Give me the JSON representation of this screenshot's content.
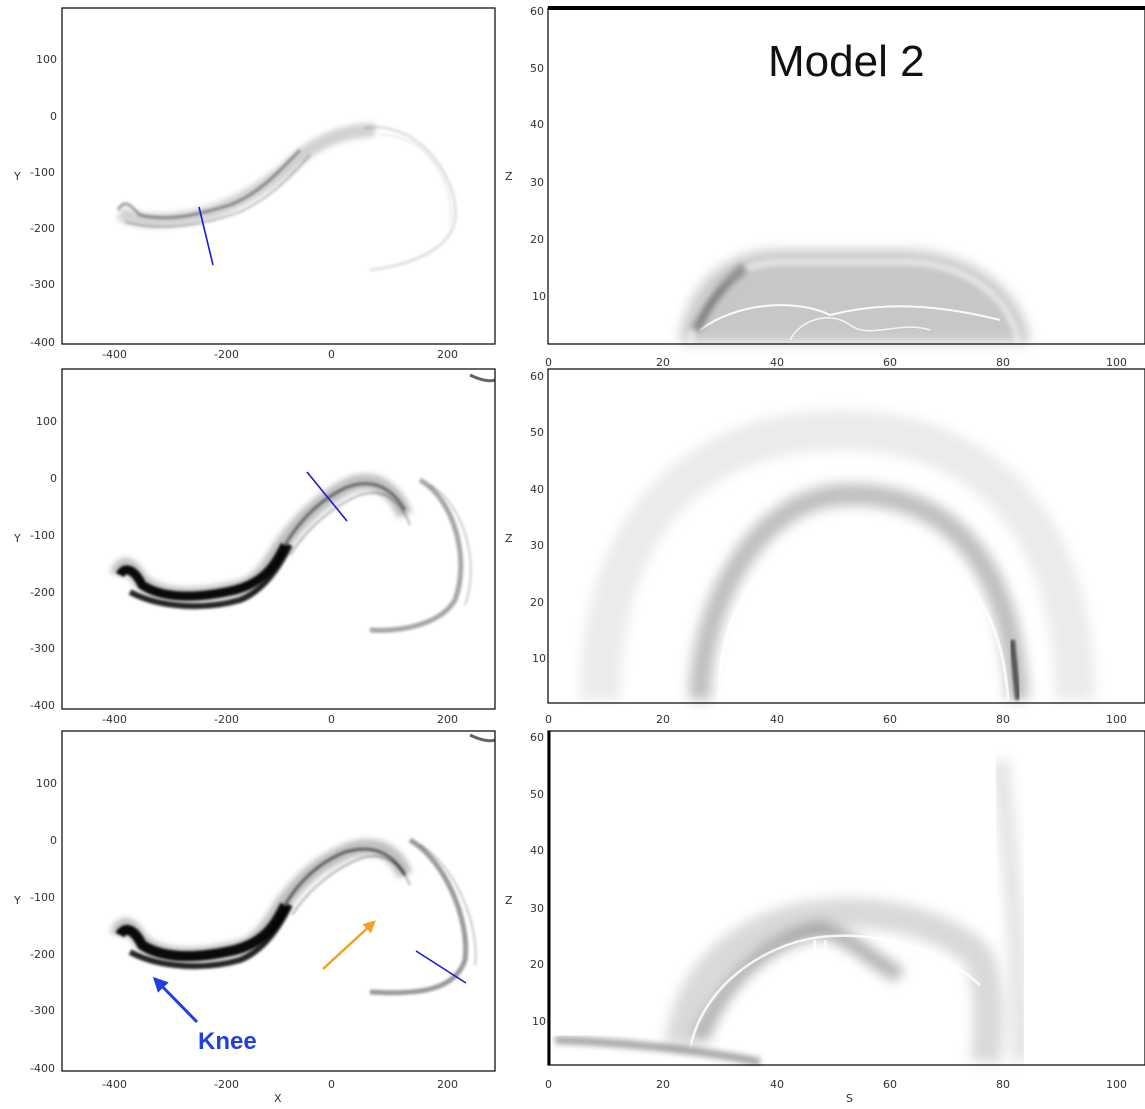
{
  "figure": {
    "title": "Model 2",
    "annotation_label": "Knee",
    "colors": {
      "cut_line": "#1a1ad6",
      "knee_arrow": "#1f3fe0",
      "orange_arrow": "#f5a023",
      "structure": "#000000"
    }
  },
  "left_panels": {
    "xlabel": "X",
    "ylabel": "Y",
    "xticks": [
      "-400",
      "-200",
      "0",
      "200"
    ],
    "yticks": [
      "100",
      "0",
      "-100",
      "-200",
      "-300",
      "-400"
    ],
    "xlim": [
      -480,
      280
    ],
    "ylim": [
      -405,
      180
    ]
  },
  "right_panels": {
    "xlabel": "S",
    "ylabel": "Z",
    "xticks": [
      "0",
      "20",
      "40",
      "60",
      "80",
      "100"
    ],
    "yticks": [
      "60",
      "50",
      "40",
      "30",
      "20",
      "10"
    ],
    "xlim": [
      0,
      105
    ],
    "ylim": [
      0,
      60
    ]
  },
  "chart_data": [
    {
      "type": "heatmap",
      "panel": "top-left",
      "xlabel": "X",
      "ylabel": "Y",
      "xlim": [
        -480,
        280
      ],
      "ylim": [
        -405,
        180
      ],
      "cut_line": {
        "x": [
          -235,
          -210
        ],
        "y": [
          -155,
          -265
        ]
      }
    },
    {
      "type": "heatmap",
      "panel": "top-right",
      "title": "Model 2",
      "xlabel": "S",
      "ylabel": "Z",
      "xlim": [
        0,
        105
      ],
      "ylim": [
        0,
        60
      ]
    },
    {
      "type": "heatmap",
      "panel": "middle-left",
      "xlabel": "X",
      "ylabel": "Y",
      "xlim": [
        -480,
        280
      ],
      "ylim": [
        -405,
        180
      ],
      "cut_line": {
        "x": [
          -35,
          35
        ],
        "y": [
          -10,
          -85
        ]
      }
    },
    {
      "type": "heatmap",
      "panel": "middle-right",
      "xlabel": "S",
      "ylabel": "Z",
      "xlim": [
        0,
        105
      ],
      "ylim": [
        0,
        60
      ]
    },
    {
      "type": "heatmap",
      "panel": "bottom-left",
      "xlabel": "X",
      "ylabel": "Y",
      "xlim": [
        -480,
        280
      ],
      "ylim": [
        -405,
        180
      ],
      "cut_line": {
        "x": [
          145,
          245
        ],
        "y": [
          -195,
          -250
        ]
      },
      "annotations": [
        {
          "text": "Knee",
          "x": -325,
          "y": -235
        },
        {
          "text": "",
          "x": 85,
          "y": -130
        }
      ]
    },
    {
      "type": "heatmap",
      "panel": "bottom-right",
      "xlabel": "S",
      "ylabel": "Z",
      "xlim": [
        0,
        105
      ],
      "ylim": [
        0,
        60
      ]
    }
  ]
}
